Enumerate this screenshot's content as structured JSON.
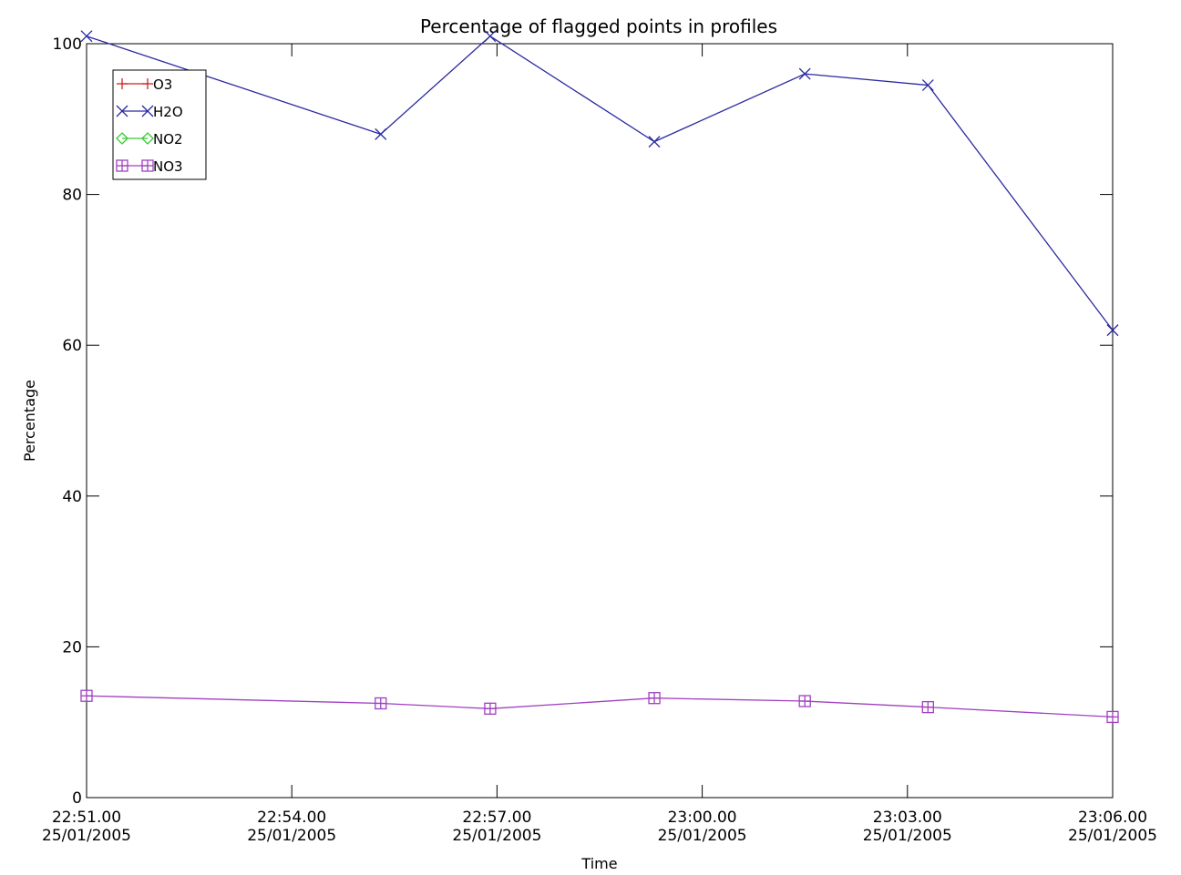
{
  "chart_data": {
    "type": "line",
    "title": "Percentage of flagged points in profiles",
    "xlabel": "Time",
    "ylabel": "Percentage",
    "x_ticks": [
      {
        "value": 0,
        "time": "22:51.00",
        "date": "25/01/2005"
      },
      {
        "value": 3,
        "time": "22:54.00",
        "date": "25/01/2005"
      },
      {
        "value": 6,
        "time": "22:57.00",
        "date": "25/01/2005"
      },
      {
        "value": 9,
        "time": "23:00.00",
        "date": "25/01/2005"
      },
      {
        "value": 12,
        "time": "23:03.00",
        "date": "25/01/2005"
      },
      {
        "value": 15,
        "time": "23:06.00",
        "date": "25/01/2005"
      }
    ],
    "xlim": [
      0,
      15
    ],
    "ylim": [
      0,
      100
    ],
    "y_ticks": [
      0,
      20,
      40,
      60,
      80,
      100
    ],
    "grid": false,
    "legend_position": "top-left",
    "series": [
      {
        "name": "O3",
        "color": "#cc2222",
        "marker": "plus",
        "x": [],
        "y": []
      },
      {
        "name": "H2O",
        "color": "#2a2aa0",
        "marker": "x",
        "x": [
          0.0,
          4.3,
          5.9,
          8.3,
          10.5,
          12.3,
          15.0
        ],
        "y": [
          101,
          88,
          101,
          87,
          96,
          94.5,
          62
        ]
      },
      {
        "name": "NO2",
        "color": "#33cc33",
        "marker": "diamond",
        "x": [],
        "y": []
      },
      {
        "name": "NO3",
        "color": "#a040c0",
        "marker": "boxed-plus",
        "x": [
          0.0,
          4.3,
          5.9,
          8.3,
          10.5,
          12.3,
          15.0
        ],
        "y": [
          13.5,
          12.5,
          11.8,
          13.2,
          12.8,
          12.0,
          10.7
        ]
      }
    ]
  }
}
